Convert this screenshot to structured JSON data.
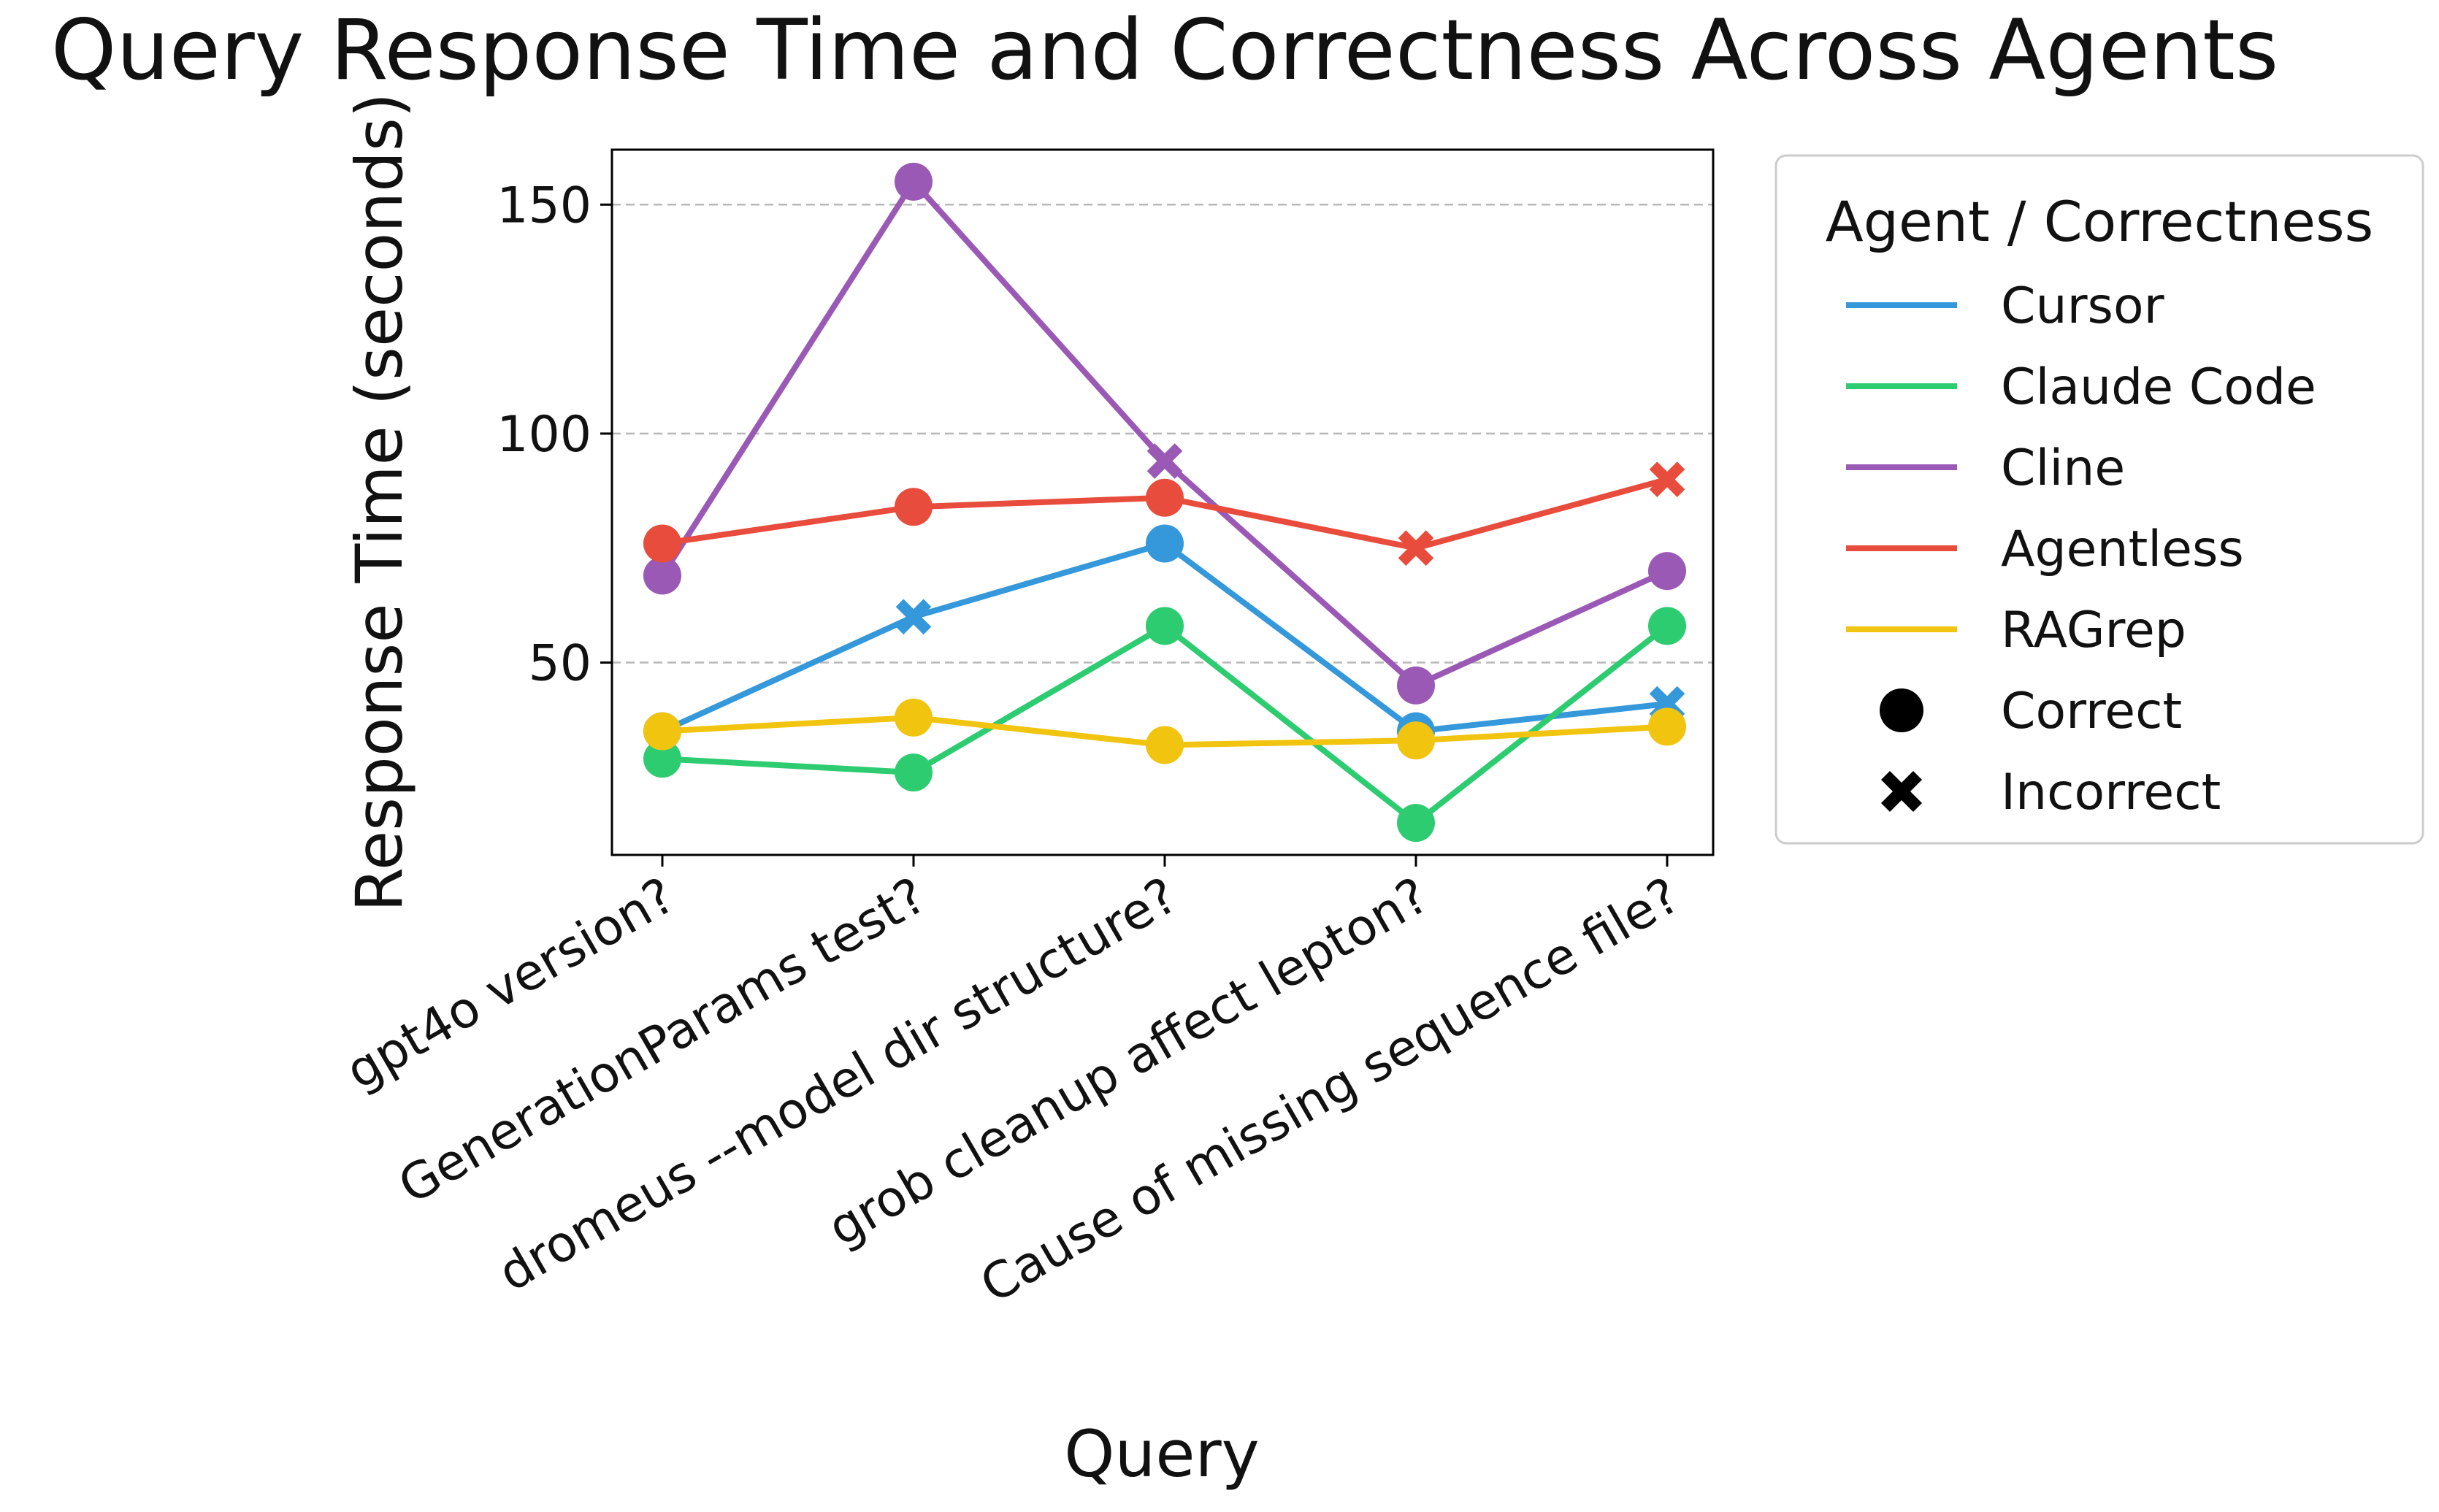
{
  "chart_data": {
    "type": "line",
    "title": "Query Response Time and Correctness Across Agents",
    "xlabel": "Query",
    "ylabel": "Response Time (seconds)",
    "categories": [
      "gpt4o version?",
      "GenerationParams test?",
      "dromeus --model dir structure?",
      "grob cleanup affect lepton?",
      "Cause of missing sequence file?"
    ],
    "ylim": [
      8,
      162
    ],
    "yticks": [
      50,
      100,
      150
    ],
    "grid": "horizontal dashed",
    "legend": {
      "title": "Agent / Correctness",
      "placement": "outside right",
      "markers": [
        {
          "label": "Correct",
          "marker": "circle"
        },
        {
          "label": "Incorrect",
          "marker": "x"
        }
      ]
    },
    "series": [
      {
        "name": "Cursor",
        "color": "#3498db",
        "values": [
          35,
          60,
          76,
          35,
          41
        ],
        "correct": [
          true,
          false,
          true,
          true,
          false
        ]
      },
      {
        "name": "Claude Code",
        "color": "#2ecc71",
        "values": [
          29,
          26,
          58,
          15,
          58
        ],
        "correct": [
          true,
          true,
          true,
          true,
          true
        ]
      },
      {
        "name": "Cline",
        "color": "#9b59b6",
        "values": [
          69,
          155,
          94,
          45,
          70
        ],
        "correct": [
          true,
          true,
          false,
          true,
          true
        ]
      },
      {
        "name": "Agentless",
        "color": "#e74c3c",
        "values": [
          76,
          84,
          86,
          75,
          90
        ],
        "correct": [
          true,
          true,
          true,
          false,
          false
        ]
      },
      {
        "name": "RAGrep",
        "color": "#f1c40f",
        "values": [
          35,
          38,
          32,
          33,
          36
        ],
        "correct": [
          true,
          true,
          true,
          true,
          true
        ]
      }
    ]
  }
}
